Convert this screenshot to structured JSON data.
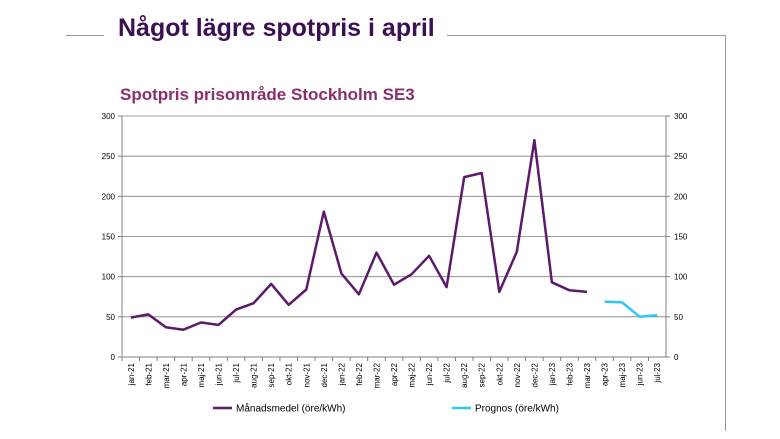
{
  "slide": {
    "title": "Något lägre spotpris i april"
  },
  "chart_data": {
    "type": "line",
    "title": "Spotpris prisområde Stockholm SE3",
    "xlabel": "",
    "ylabel": "",
    "ylim": [
      0,
      300
    ],
    "yticks": [
      0,
      50,
      100,
      150,
      200,
      250,
      300
    ],
    "secondary_y": {
      "ylim": [
        0,
        300
      ],
      "yticks": [
        0,
        50,
        100,
        150,
        200,
        250,
        300
      ]
    },
    "grid": true,
    "legend_position": "bottom",
    "categories": [
      "jan-21",
      "feb-21",
      "mar-21",
      "apr-21",
      "maj-21",
      "jun-21",
      "jul-21",
      "aug-21",
      "sep-21",
      "okt-21",
      "nov-21",
      "dec-21",
      "jan-22",
      "feb-22",
      "mar-22",
      "apr-22",
      "maj-22",
      "jun-22",
      "jul-22",
      "aug-22",
      "sep-22",
      "okt-22",
      "nov-22",
      "dec-22",
      "jan-23",
      "feb-23",
      "mar-23",
      "apr-23",
      "maj-23",
      "jun-23",
      "jul-23"
    ],
    "series": [
      {
        "name": "Månadsmedel (öre/kWh)",
        "color": "#5c1a6b",
        "values": [
          49,
          53,
          37,
          34,
          43,
          40,
          59,
          67,
          91,
          65,
          84,
          181,
          104,
          78,
          130,
          90,
          103,
          126,
          87,
          224,
          229,
          81,
          131,
          270,
          93,
          83,
          81,
          null,
          null,
          null,
          null
        ]
      },
      {
        "name": "Prognos (öre/kWh)",
        "color": "#2ec8f0",
        "values": [
          null,
          null,
          null,
          null,
          null,
          null,
          null,
          null,
          null,
          null,
          null,
          null,
          null,
          null,
          null,
          null,
          null,
          null,
          null,
          null,
          null,
          null,
          null,
          null,
          null,
          null,
          null,
          69,
          68,
          50,
          52
        ]
      }
    ]
  }
}
